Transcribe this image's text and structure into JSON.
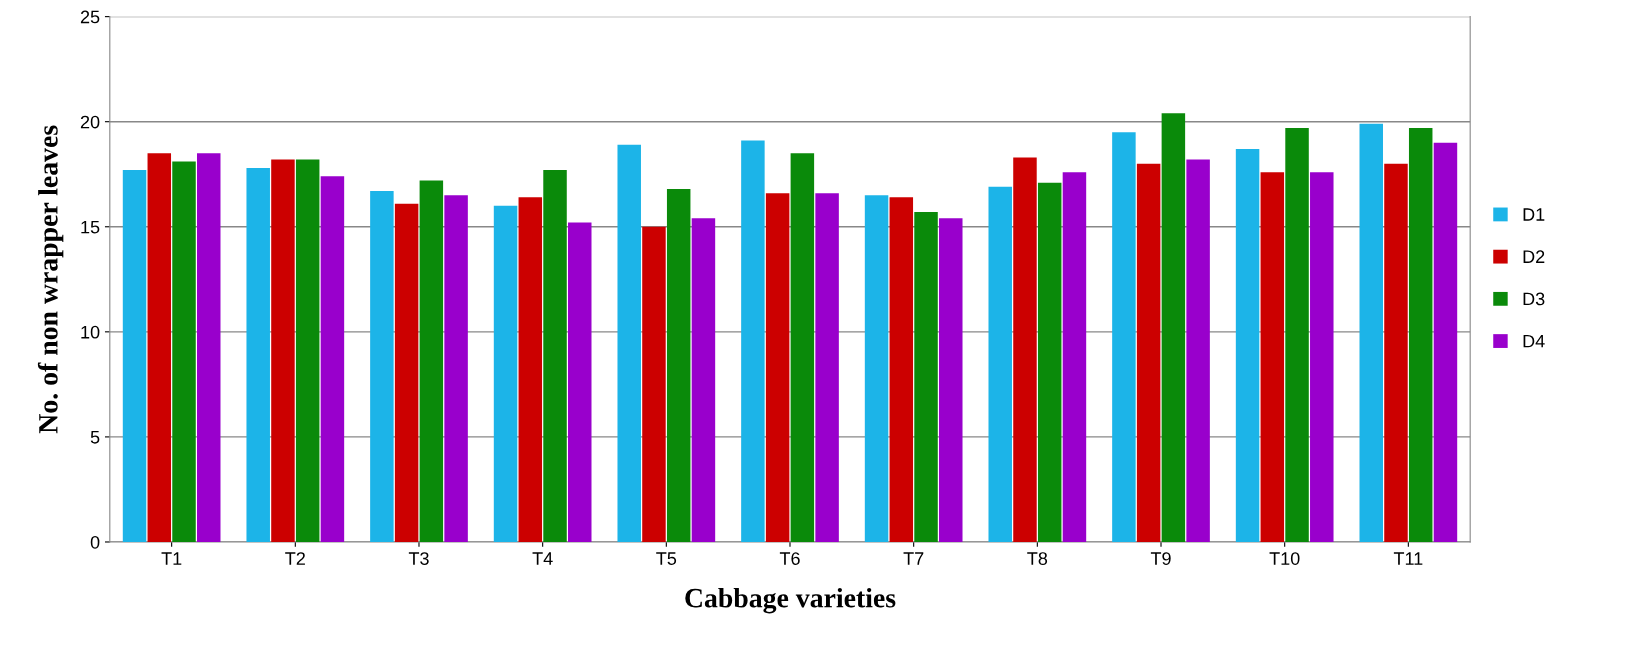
{
  "chart_data": {
    "type": "bar",
    "xlabel": "Cabbage varieties",
    "ylabel": "No. of non wrapper leaves",
    "categories": [
      "T1",
      "T2",
      "T3",
      "T4",
      "T5",
      "T6",
      "T7",
      "T8",
      "T9",
      "T10",
      "T11"
    ],
    "series": [
      {
        "name": "D1",
        "color": "#1cb4e8",
        "values": [
          17.7,
          17.8,
          16.7,
          16.0,
          18.9,
          19.1,
          16.5,
          16.9,
          19.5,
          18.7,
          19.9
        ]
      },
      {
        "name": "D2",
        "color": "#cc0000",
        "values": [
          18.5,
          18.2,
          16.1,
          16.4,
          15.0,
          16.6,
          16.4,
          18.3,
          18.0,
          17.6,
          18.0
        ]
      },
      {
        "name": "D3",
        "color": "#0a8a0a",
        "values": [
          18.1,
          18.2,
          17.2,
          17.7,
          16.8,
          18.5,
          15.7,
          17.1,
          20.4,
          19.7,
          19.7
        ]
      },
      {
        "name": "D4",
        "color": "#9900cc",
        "values": [
          18.5,
          17.4,
          16.5,
          15.2,
          15.4,
          16.6,
          15.4,
          17.6,
          18.2,
          17.6,
          19.0
        ]
      }
    ],
    "ylim": [
      0,
      25
    ],
    "yticks": [
      0,
      5,
      10,
      15,
      20,
      25
    ],
    "grid": "y",
    "legend": "right"
  }
}
